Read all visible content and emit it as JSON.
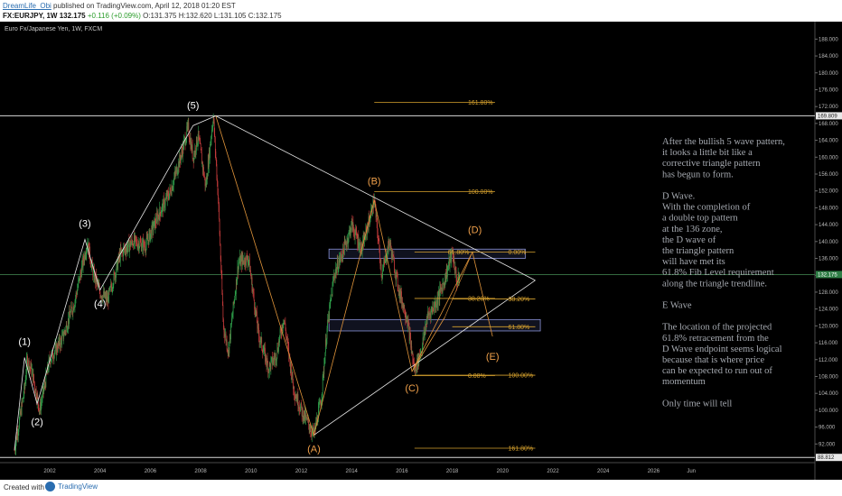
{
  "header": {
    "author": "DreamLife_Obi",
    "published_text": "published on TradingView.com, April 12, 2018 01:20 EST",
    "symbol": "FX:EURJPY, 1W",
    "last": "132.175",
    "change": "+0.116 (+0.09%)",
    "open": "O:131.375",
    "high": "H:132.620",
    "low": "L:131.105",
    "close": "C:132.175"
  },
  "footer": {
    "created_with": "Created with",
    "brand": "TradingView"
  },
  "colors": {
    "background": "#000000",
    "up_candle": "#2e9e4a",
    "down_candle": "#c43b3b",
    "wave_line": "#e8e8e8",
    "orange_line": "#e0943a",
    "fib_line": "#d7a22e",
    "note_text": "#a5a9b0",
    "current_price_line": "#3c7a4a"
  },
  "chart_data": {
    "type": "candlestick",
    "title": "Euro Fx/Japanese Yen, 1W, FXCM",
    "ylim": [
      88,
      190
    ],
    "y_ticks": [
      "188.000",
      "184.000",
      "180.000",
      "176.000",
      "172.000",
      "168.000",
      "164.000",
      "160.000",
      "156.000",
      "152.000",
      "148.000",
      "144.000",
      "140.000",
      "136.000",
      "132.000",
      "128.000",
      "124.000",
      "120.000",
      "116.000",
      "112.000",
      "108.000",
      "104.000",
      "100.000",
      "96.000",
      "92.000"
    ],
    "x_ticks": [
      "2002",
      "2004",
      "2006",
      "2008",
      "2010",
      "2012",
      "2014",
      "2016",
      "2018",
      "2020",
      "2022",
      "2024",
      "2026",
      "Jun"
    ],
    "price_flags": [
      {
        "label": "169.809",
        "value": 169.809
      },
      {
        "label": "132.175",
        "value": 132.175
      },
      {
        "label": "88.812",
        "value": 88.812
      }
    ],
    "approx_weekly_path": [
      {
        "t": 2000.6,
        "p": 90.5
      },
      {
        "t": 2001.0,
        "p": 105
      },
      {
        "t": 2001.1,
        "p": 112
      },
      {
        "t": 2001.3,
        "p": 109
      },
      {
        "t": 2001.6,
        "p": 100
      },
      {
        "t": 2002.0,
        "p": 112
      },
      {
        "t": 2002.5,
        "p": 117
      },
      {
        "t": 2003.0,
        "p": 126
      },
      {
        "t": 2003.5,
        "p": 140
      },
      {
        "t": 2003.7,
        "p": 133
      },
      {
        "t": 2004.0,
        "p": 128
      },
      {
        "t": 2004.3,
        "p": 126
      },
      {
        "t": 2004.8,
        "p": 137
      },
      {
        "t": 2005.3,
        "p": 140
      },
      {
        "t": 2005.8,
        "p": 139
      },
      {
        "t": 2006.3,
        "p": 146
      },
      {
        "t": 2006.8,
        "p": 152
      },
      {
        "t": 2007.2,
        "p": 160
      },
      {
        "t": 2007.5,
        "p": 167
      },
      {
        "t": 2007.7,
        "p": 160
      },
      {
        "t": 2007.9,
        "p": 165
      },
      {
        "t": 2008.2,
        "p": 153
      },
      {
        "t": 2008.5,
        "p": 169.8
      },
      {
        "t": 2008.7,
        "p": 150
      },
      {
        "t": 2008.9,
        "p": 120
      },
      {
        "t": 2009.1,
        "p": 114
      },
      {
        "t": 2009.5,
        "p": 135
      },
      {
        "t": 2009.9,
        "p": 136
      },
      {
        "t": 2010.3,
        "p": 118
      },
      {
        "t": 2010.7,
        "p": 110
      },
      {
        "t": 2011.0,
        "p": 113
      },
      {
        "t": 2011.3,
        "p": 122
      },
      {
        "t": 2011.7,
        "p": 105
      },
      {
        "t": 2012.0,
        "p": 100
      },
      {
        "t": 2012.5,
        "p": 94.1
      },
      {
        "t": 2012.8,
        "p": 103
      },
      {
        "t": 2013.0,
        "p": 118
      },
      {
        "t": 2013.3,
        "p": 132
      },
      {
        "t": 2013.8,
        "p": 140
      },
      {
        "t": 2014.0,
        "p": 144
      },
      {
        "t": 2014.4,
        "p": 138
      },
      {
        "t": 2014.9,
        "p": 149.8
      },
      {
        "t": 2015.2,
        "p": 132
      },
      {
        "t": 2015.5,
        "p": 140
      },
      {
        "t": 2015.9,
        "p": 128
      },
      {
        "t": 2016.2,
        "p": 122
      },
      {
        "t": 2016.5,
        "p": 109.2
      },
      {
        "t": 2016.8,
        "p": 115
      },
      {
        "t": 2017.0,
        "p": 122
      },
      {
        "t": 2017.4,
        "p": 126
      },
      {
        "t": 2017.7,
        "p": 131
      },
      {
        "t": 2018.0,
        "p": 137.5
      },
      {
        "t": 2018.2,
        "p": 130
      },
      {
        "t": 2018.3,
        "p": 132.2
      }
    ],
    "wave_labels": [
      {
        "label": "(1)",
        "t": 2001.0,
        "p": 115.5
      },
      {
        "label": "(2)",
        "t": 2001.5,
        "p": 96.5
      },
      {
        "label": "(3)",
        "t": 2003.4,
        "p": 143.5
      },
      {
        "label": "(4)",
        "t": 2004.0,
        "p": 124.5
      },
      {
        "label": "(5)",
        "t": 2007.7,
        "p": 171.5
      },
      {
        "label": "(A)",
        "t": 2012.5,
        "p": 90.0
      },
      {
        "label": "(B)",
        "t": 2014.9,
        "p": 153.5
      },
      {
        "label": "(C)",
        "t": 2016.4,
        "p": 104.5
      },
      {
        "label": "(D)",
        "t": 2018.9,
        "p": 142.0
      },
      {
        "label": "(E)",
        "t": 2019.6,
        "p": 112.0
      }
    ],
    "fib_upper": [
      {
        "label": "161.80%",
        "t1": 2014.9,
        "t2": 2019.7,
        "p": 173.0
      },
      {
        "label": "100.00%",
        "t1": 2014.9,
        "t2": 2019.7,
        "p": 151.8
      },
      {
        "label": "61.80%",
        "t1": 2016.5,
        "t2": 2018.9,
        "p": 137.5
      },
      {
        "label": "38.20%",
        "t1": 2016.5,
        "t2": 2019.7,
        "p": 126.5
      },
      {
        "label": "0.00%",
        "t1": 2016.4,
        "t2": 2019.7,
        "p": 108.2
      }
    ],
    "fib_lower": [
      {
        "label": "0.00%",
        "t1": 2018.2,
        "t2": 2021.3,
        "p": 137.5
      },
      {
        "label": "38.20%",
        "t1": 2018.0,
        "t2": 2021.3,
        "p": 126.4
      },
      {
        "label": "61.80%",
        "t1": 2018.0,
        "t2": 2021.3,
        "p": 119.8
      },
      {
        "label": "100.00%",
        "t1": 2016.5,
        "t2": 2021.3,
        "p": 108.3
      },
      {
        "label": "161.80%",
        "t1": 2016.5,
        "t2": 2021.3,
        "p": 91.0
      }
    ],
    "zones": [
      {
        "t1": 2013.1,
        "t2": 2020.9,
        "p1": 138.2,
        "p2": 136.0
      },
      {
        "t1": 2013.1,
        "t2": 2021.5,
        "p1": 121.5,
        "p2": 118.8
      }
    ],
    "annotation": [
      "After the bullish 5 wave pattern,",
      "it looks a little bit like a",
      "corrective triangle pattern",
      "has begun to form.",
      "",
      "D Wave.",
      "With the completion of",
      "a double top pattern",
      "at the 136 zone,",
      "the D wave of",
      "the triangle pattern",
      "will have met its",
      "61.8% Fib Level requirement",
      "along the triangle trendline.",
      "",
      "E Wave",
      "",
      "The location of the projected",
      "61.8% retracement from the",
      "D Wave endpoint seems logical",
      "because that is where price",
      "can be expected to run out of",
      "momentum",
      "",
      "Only time will tell"
    ]
  }
}
